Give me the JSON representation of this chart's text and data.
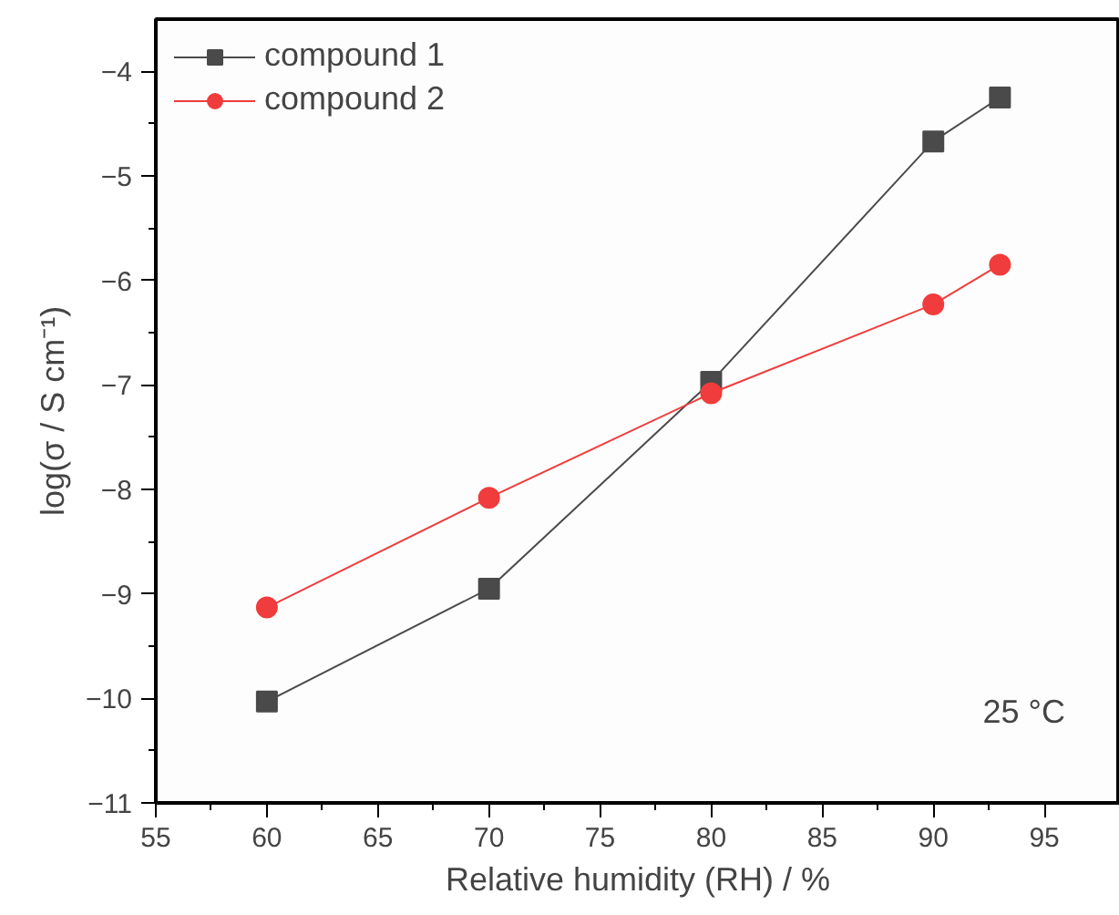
{
  "chart_data": {
    "type": "line",
    "xlabel": "Relative humidity (RH) / %",
    "ylabel": "log(σ / S cm⁻¹)",
    "x": [
      60,
      70,
      80,
      90,
      93
    ],
    "series": [
      {
        "name": "compound 1",
        "color": "#4a4a4a",
        "marker": "square",
        "values": [
          -10.03,
          -8.95,
          -6.97,
          -4.67,
          -4.25
        ]
      },
      {
        "name": "compound 2",
        "color": "#f03c3c",
        "marker": "circle",
        "values": [
          -9.13,
          -8.08,
          -7.08,
          -6.23,
          -5.85
        ]
      }
    ],
    "xlim": [
      55,
      98.4
    ],
    "ylim": [
      -11,
      -3.5
    ],
    "xticks": [
      55,
      60,
      65,
      70,
      75,
      80,
      85,
      90,
      95
    ],
    "yticks": [
      -11,
      -10,
      -9,
      -8,
      -7,
      -6,
      -5,
      -4
    ],
    "grid": false,
    "legend": "top left",
    "annotations": [
      "25 °C"
    ]
  }
}
